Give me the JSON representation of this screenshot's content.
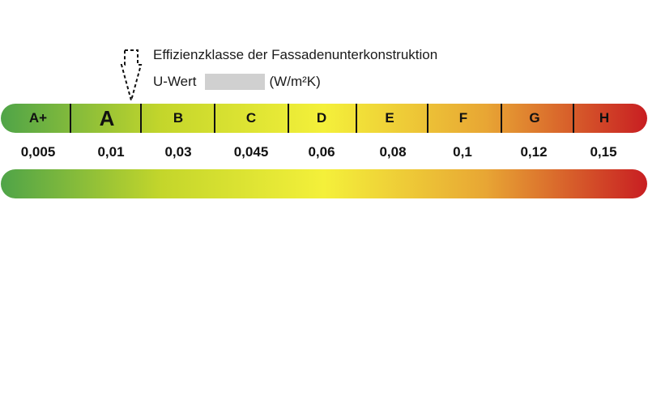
{
  "header": {
    "title": "Effizienzklasse der Fassadenunterkonstruktion",
    "u_label": "U-Wert",
    "u_value": "",
    "u_unit": "(W/m²K)"
  },
  "scale": {
    "classes": [
      {
        "label": "A+",
        "value": "0,005"
      },
      {
        "label": "A",
        "value": "0,01"
      },
      {
        "label": "B",
        "value": "0,03"
      },
      {
        "label": "C",
        "value": "0,045"
      },
      {
        "label": "D",
        "value": "0,06"
      },
      {
        "label": "E",
        "value": "0,08"
      },
      {
        "label": "F",
        "value": "0,1"
      },
      {
        "label": "G",
        "value": "0,12"
      },
      {
        "label": "H",
        "value": "0,15"
      }
    ],
    "selected_class": "A",
    "gradient_colors": [
      "#4fa448",
      "#c4d62b",
      "#f4f03a",
      "#e8a634",
      "#c81e22"
    ]
  }
}
